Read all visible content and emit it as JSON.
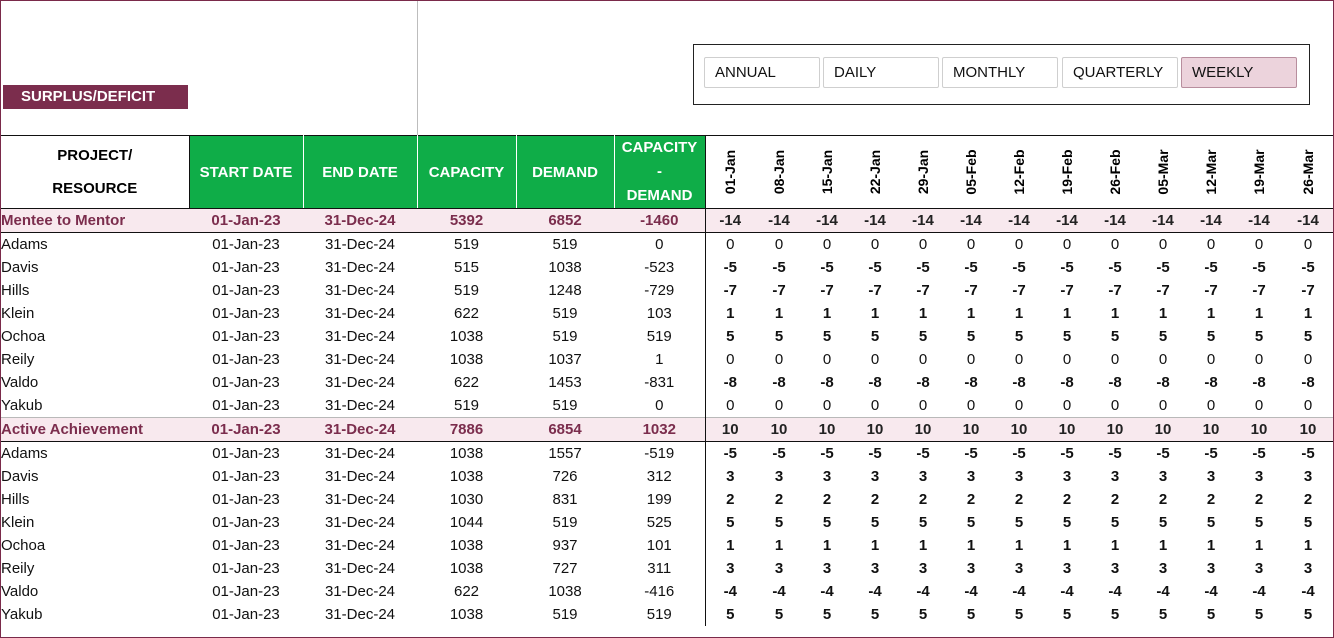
{
  "sheet_title": "SURPLUS/DEFICIT",
  "slicer": {
    "options": [
      "ANNUAL",
      "DAILY",
      "MONTHLY",
      "QUARTERLY",
      "WEEKLY"
    ],
    "selected": "WEEKLY"
  },
  "headers": {
    "project_resource_line1": "PROJECT/",
    "project_resource_line2": "RESOURCE",
    "start_date": "START DATE",
    "end_date": "END DATE",
    "capacity": "CAPACITY",
    "demand": "DEMAND",
    "cap_minus_demand_1": "CAPACITY",
    "cap_minus_demand_2": "-",
    "cap_minus_demand_3": "DEMAND"
  },
  "weeks": [
    "01-Jan",
    "08-Jan",
    "15-Jan",
    "22-Jan",
    "29-Jan",
    "05-Feb",
    "12-Feb",
    "19-Feb",
    "26-Feb",
    "05-Mar",
    "12-Mar",
    "19-Mar",
    "26-Mar"
  ],
  "rows": [
    {
      "type": "project",
      "name": "Mentee to Mentor",
      "start": "01-Jan-23",
      "end": "31-Dec-24",
      "capacity": "5392",
      "demand": "6852",
      "diff": "-1460",
      "weekly": "-14"
    },
    {
      "type": "resource",
      "name": "Adams",
      "start": "01-Jan-23",
      "end": "31-Dec-24",
      "capacity": "519",
      "demand": "519",
      "diff": "0",
      "weekly": "0"
    },
    {
      "type": "resource",
      "name": "Davis",
      "start": "01-Jan-23",
      "end": "31-Dec-24",
      "capacity": "515",
      "demand": "1038",
      "diff": "-523",
      "weekly": "-5"
    },
    {
      "type": "resource",
      "name": "Hills",
      "start": "01-Jan-23",
      "end": "31-Dec-24",
      "capacity": "519",
      "demand": "1248",
      "diff": "-729",
      "weekly": "-7"
    },
    {
      "type": "resource",
      "name": "Klein",
      "start": "01-Jan-23",
      "end": "31-Dec-24",
      "capacity": "622",
      "demand": "519",
      "diff": "103",
      "weekly": "1"
    },
    {
      "type": "resource",
      "name": "Ochoa",
      "start": "01-Jan-23",
      "end": "31-Dec-24",
      "capacity": "1038",
      "demand": "519",
      "diff": "519",
      "weekly": "5"
    },
    {
      "type": "resource",
      "name": "Reily",
      "start": "01-Jan-23",
      "end": "31-Dec-24",
      "capacity": "1038",
      "demand": "1037",
      "diff": "1",
      "weekly": "0"
    },
    {
      "type": "resource",
      "name": "Valdo",
      "start": "01-Jan-23",
      "end": "31-Dec-24",
      "capacity": "622",
      "demand": "1453",
      "diff": "-831",
      "weekly": "-8"
    },
    {
      "type": "resource",
      "name": "Yakub",
      "start": "01-Jan-23",
      "end": "31-Dec-24",
      "capacity": "519",
      "demand": "519",
      "diff": "0",
      "weekly": "0"
    },
    {
      "type": "project",
      "name": "Active Achievement",
      "start": "01-Jan-23",
      "end": "31-Dec-24",
      "capacity": "7886",
      "demand": "6854",
      "diff": "1032",
      "weekly": "10"
    },
    {
      "type": "resource",
      "name": "Adams",
      "start": "01-Jan-23",
      "end": "31-Dec-24",
      "capacity": "1038",
      "demand": "1557",
      "diff": "-519",
      "weekly": "-5"
    },
    {
      "type": "resource",
      "name": "Davis",
      "start": "01-Jan-23",
      "end": "31-Dec-24",
      "capacity": "1038",
      "demand": "726",
      "diff": "312",
      "weekly": "3"
    },
    {
      "type": "resource",
      "name": "Hills",
      "start": "01-Jan-23",
      "end": "31-Dec-24",
      "capacity": "1030",
      "demand": "831",
      "diff": "199",
      "weekly": "2"
    },
    {
      "type": "resource",
      "name": "Klein",
      "start": "01-Jan-23",
      "end": "31-Dec-24",
      "capacity": "1044",
      "demand": "519",
      "diff": "525",
      "weekly": "5"
    },
    {
      "type": "resource",
      "name": "Ochoa",
      "start": "01-Jan-23",
      "end": "31-Dec-24",
      "capacity": "1038",
      "demand": "937",
      "diff": "101",
      "weekly": "1"
    },
    {
      "type": "resource",
      "name": "Reily",
      "start": "01-Jan-23",
      "end": "31-Dec-24",
      "capacity": "1038",
      "demand": "727",
      "diff": "311",
      "weekly": "3"
    },
    {
      "type": "resource",
      "name": "Valdo",
      "start": "01-Jan-23",
      "end": "31-Dec-24",
      "capacity": "622",
      "demand": "1038",
      "diff": "-416",
      "weekly": "-4"
    },
    {
      "type": "resource",
      "name": "Yakub",
      "start": "01-Jan-23",
      "end": "31-Dec-24",
      "capacity": "1038",
      "demand": "519",
      "diff": "519",
      "weekly": "5"
    }
  ],
  "colors": {
    "accent": "#7b2d4d",
    "header_green": "#0fad48",
    "negative": "#b01818",
    "zero": "#c6c6c6",
    "project_row_bg": "#f8e9ee",
    "slicer_selected": "#ecd3dc"
  }
}
